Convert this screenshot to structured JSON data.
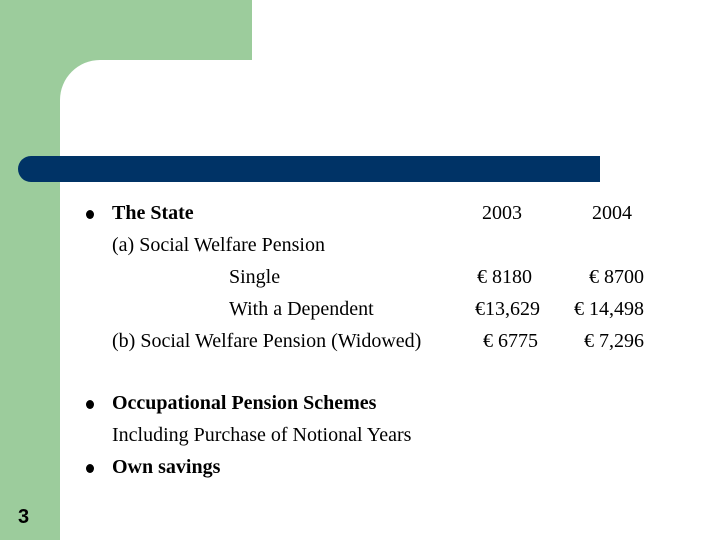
{
  "slide_number": "3",
  "bullets": {
    "state": "The State",
    "occupational": "Occupational Pension Schemes",
    "occupational_sub": "Including Purchase of Notional Years",
    "savings": "Own savings"
  },
  "table": {
    "col_2003": "2003",
    "col_2004": "2004",
    "section_a": "(a) Social Welfare Pension",
    "single_label": "Single",
    "single_2003": "€ 8180",
    "single_2004": "€ 8700",
    "dependent_label": "With a Dependent",
    "dependent_2003": "€13,629",
    "dependent_2004": "€ 14,498",
    "widowed_label": "(b) Social Welfare Pension (Widowed)",
    "widowed_2003": "€ 6775",
    "widowed_2004": "€ 7,296"
  }
}
